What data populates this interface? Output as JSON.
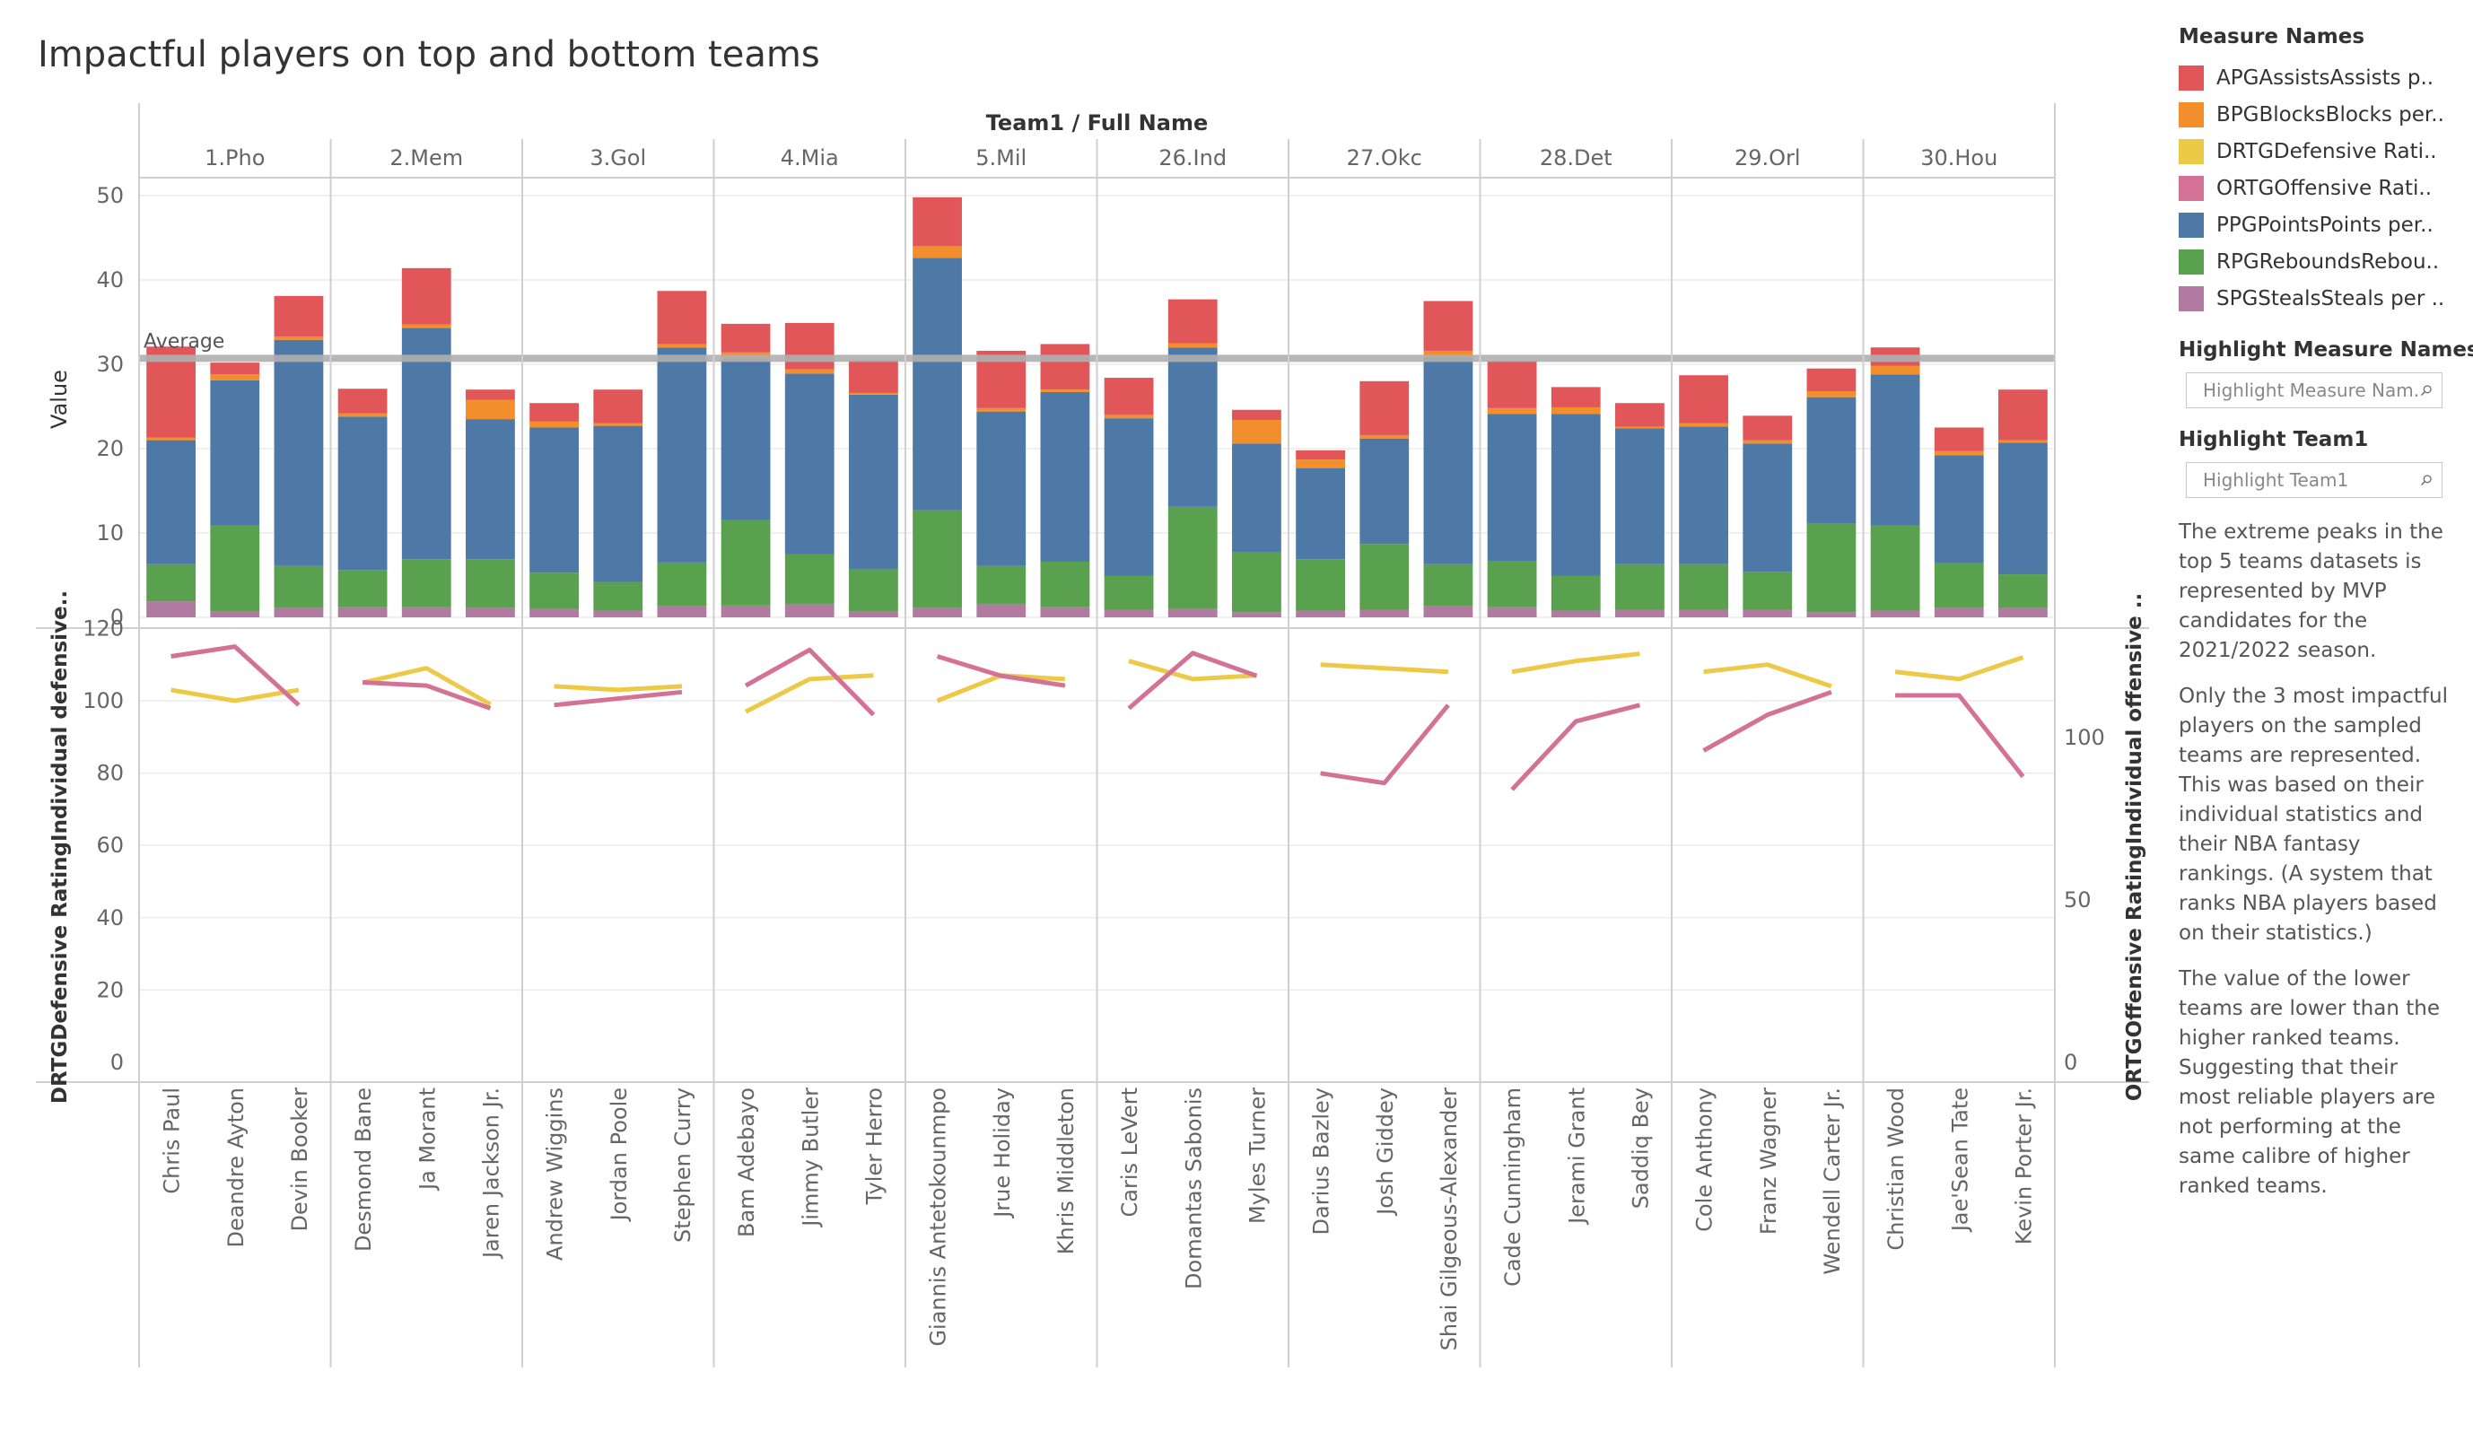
{
  "title": "Impactful players on top and bottom teams",
  "header_label": "Team1  /  Full Name",
  "average_label": "Average",
  "y_axis_top_label": "Value",
  "y_axis_bottom_left_label": "DRTGDefensive RatingIndividual defensive..",
  "y_axis_bottom_right_label": "ORTGOffensive RatingIndividual offensive ..",
  "chart_data": {
    "type": "bar",
    "title": "Impactful players on top and bottom teams",
    "teams": [
      "1.Pho",
      "2.Mem",
      "3.Gol",
      "4.Mia",
      "5.Mil",
      "26.Ind",
      "27.Okc",
      "28.Det",
      "29.Orl",
      "30.Hou"
    ],
    "players": [
      "Chris Paul",
      "Deandre Ayton",
      "Devin Booker",
      "Desmond Bane",
      "Ja Morant",
      "Jaren Jackson Jr.",
      "Andrew Wiggins",
      "Jordan Poole",
      "Stephen Curry",
      "Bam Adebayo",
      "Jimmy Butler",
      "Tyler Herro",
      "Giannis Antetokounmpo",
      "Jrue Holiday",
      "Khris Middleton",
      "Caris LeVert",
      "Domantas Sabonis",
      "Myles Turner",
      "Darius Bazley",
      "Josh Giddey",
      "Shai Gilgeous-Alexander",
      "Cade Cunningham",
      "Jerami Grant",
      "Saddiq Bey",
      "Cole Anthony",
      "Franz Wagner",
      "Wendell Carter Jr.",
      "Christian Wood",
      "Jae'Sean Tate",
      "Kevin Porter Jr."
    ],
    "stack_order": [
      "SPG",
      "RPG",
      "PPG",
      "BPG",
      "APG"
    ],
    "stacked_series": {
      "SPG": [
        1.9,
        0.7,
        1.1,
        1.2,
        1.2,
        1.1,
        1.0,
        0.8,
        1.3,
        1.4,
        1.6,
        0.7,
        1.1,
        1.6,
        1.2,
        0.9,
        1.0,
        0.6,
        0.8,
        0.9,
        1.3,
        1.2,
        0.8,
        0.9,
        0.9,
        0.9,
        0.6,
        0.8,
        1.1,
        1.1
      ],
      "RPG": [
        4.4,
        10.2,
        5.0,
        4.4,
        5.7,
        5.8,
        4.3,
        3.4,
        5.2,
        10.1,
        5.9,
        5.0,
        11.6,
        4.5,
        5.4,
        4.0,
        12.1,
        7.1,
        6.1,
        7.8,
        5.0,
        5.5,
        4.1,
        5.4,
        5.4,
        4.5,
        10.5,
        10.1,
        5.3,
        4.0
      ],
      "PPG": [
        14.7,
        17.2,
        26.8,
        18.2,
        27.4,
        16.6,
        17.2,
        18.5,
        25.5,
        19.1,
        21.4,
        20.7,
        29.9,
        18.3,
        20.1,
        18.7,
        18.9,
        12.9,
        10.8,
        12.5,
        24.5,
        17.4,
        19.2,
        16.1,
        16.3,
        15.2,
        15.0,
        17.9,
        12.8,
        15.6
      ],
      "BPG": [
        0.3,
        0.7,
        0.4,
        0.4,
        0.4,
        2.3,
        0.7,
        0.3,
        0.4,
        0.8,
        0.5,
        0.2,
        1.4,
        0.4,
        0.3,
        0.4,
        0.5,
        2.8,
        1.0,
        0.4,
        0.8,
        0.7,
        0.8,
        0.2,
        0.4,
        0.4,
        0.7,
        1.0,
        0.5,
        0.3
      ],
      "APG": [
        10.8,
        1.4,
        4.8,
        2.9,
        6.7,
        1.2,
        2.2,
        4.0,
        6.3,
        3.4,
        5.5,
        3.9,
        5.8,
        6.8,
        5.4,
        4.4,
        5.2,
        1.2,
        1.1,
        6.4,
        5.9,
        5.6,
        2.4,
        2.8,
        5.7,
        2.9,
        2.7,
        2.2,
        2.8,
        6.0
      ]
    },
    "average": 30.7,
    "top_ylim": [
      0,
      50
    ],
    "top_ylabel": "Value",
    "DRTG": [
      103,
      100,
      103,
      105,
      109,
      99,
      104,
      103,
      104,
      97,
      106,
      107,
      100,
      107,
      106,
      111,
      106,
      107,
      110,
      109,
      108,
      108,
      111,
      113,
      108,
      110,
      104,
      108,
      106,
      112
    ],
    "ORTG": [
      125,
      128,
      110,
      117,
      116,
      109,
      110,
      112,
      114,
      116,
      127,
      107,
      125,
      119,
      116,
      109,
      126,
      119,
      89,
      86,
      110,
      84,
      105,
      110,
      96,
      107,
      114,
      113,
      113,
      88
    ],
    "bottom_left_ylim": [
      0,
      120
    ],
    "bottom_right_ylim": [
      0,
      125
    ],
    "bottom_left_ylabel": "DRTGDefensive RatingIndividual defensive..",
    "bottom_right_ylabel": "ORTGOffensive RatingIndividual offensive ..",
    "grid": true
  },
  "colors": {
    "APG": "#e15759",
    "BPG": "#f28e2b",
    "DRTG": "#edc948",
    "ORTG": "#d37295",
    "PPG": "#4e79a7",
    "RPG": "#59a14f",
    "SPG": "#b07aa1",
    "average_line": "#b0b0b0"
  },
  "legend": {
    "title": "Measure Names",
    "items": [
      {
        "label": "APGAssistsAssists p..",
        "color": "#e15759"
      },
      {
        "label": "BPGBlocksBlocks per..",
        "color": "#f28e2b"
      },
      {
        "label": "DRTGDefensive Rati..",
        "color": "#edc948"
      },
      {
        "label": "ORTGOffensive Rati..",
        "color": "#d37295"
      },
      {
        "label": "PPGPointsPoints per..",
        "color": "#4e79a7"
      },
      {
        "label": "RPGReboundsRebou..",
        "color": "#59a14f"
      },
      {
        "label": "SPGStealsSteals per ..",
        "color": "#b07aa1"
      }
    ]
  },
  "highlight_measure": {
    "title": "Highlight Measure Names",
    "placeholder": "Highlight Measure Nam..."
  },
  "highlight_team": {
    "title": "Highlight Team1",
    "placeholder": "Highlight Team1"
  },
  "notes": [
    "The extreme peaks in the top 5 teams datasets is represented by MVP candidates for the 2021/2022 season.",
    "Only the 3 most impactful players on the sampled teams are represented. This was based on their individual statistics and their NBA fantasy rankings. (A system that ranks NBA players based on their statistics.)",
    "The value of the lower teams are lower than the higher ranked teams. Suggesting that their most reliable players are not performing at the same calibre of higher ranked teams."
  ]
}
